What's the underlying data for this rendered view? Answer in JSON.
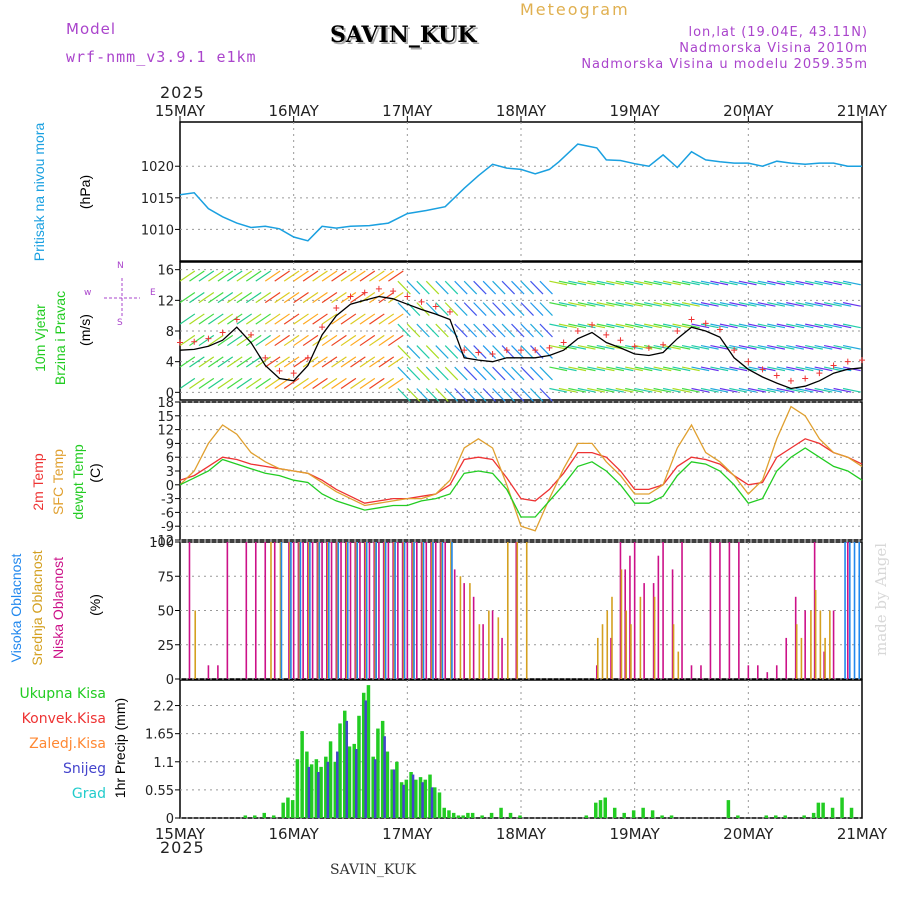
{
  "header": {
    "model_label": "Model",
    "model_name": "wrf-nmm_v3.9.1  e1km",
    "station": "SAVIN_KUK",
    "title": "Meteogram",
    "coords": "lon,lat (19.04E, 43.11N)",
    "elev": "Nadmorska Visina 2010m",
    "elev_model": "Nadmorska Visina u modelu 2059.35m",
    "footer": "SAVIN_KUK",
    "credit": "made by Angel"
  },
  "time_axis": {
    "year": "2025",
    "ticks": [
      "15MAY",
      "16MAY",
      "17MAY",
      "18MAY",
      "19MAY",
      "20MAY",
      "21MAY"
    ]
  },
  "panel_labels": {
    "pressure": [
      "Pritisak na nivou mora",
      "(hPa)"
    ],
    "wind": [
      "10m Vjetar",
      "Brzina i Pravac",
      "(m/s)"
    ],
    "temp": [
      "2m Temp",
      "SFC Temp",
      "dewpt Temp",
      "(C)"
    ],
    "cloud": [
      "Visoka Oblacnost",
      "Srednja Oblacnost",
      "Niska Oblacnost",
      "(%)"
    ],
    "precip": [
      "Ukupna Kisa",
      "Konvek.Kisa",
      "Zaledj.Kisa",
      "Snijeg",
      "Grad",
      "1hr Precip (mm)"
    ],
    "compass": {
      "w": "w",
      "n": "N",
      "s": "S",
      "e": "E"
    }
  },
  "colors": {
    "pressure": "#1aa0e0",
    "temp2m": "#ee3333",
    "sfc": "#e0a030",
    "dewpt": "#22cc22",
    "cloud_high": "#2288ee",
    "cloud_mid": "#d4a020",
    "cloud_low": "#cc1188",
    "precip_total": "#22cc22",
    "precip_conv": "#ee3333",
    "precip_frz": "#ff8833",
    "precip_snow": "#4444cc",
    "precip_hail": "#22cccc",
    "compass": "#aa44cc"
  },
  "chart_data": [
    {
      "type": "line",
      "name": "pressure",
      "ylabel": "(hPa)",
      "ylim": [
        1005,
        1027
      ],
      "yticks": [
        1010,
        1015,
        1020
      ],
      "x_hours": [
        0,
        3,
        6,
        9,
        12,
        15,
        18,
        21,
        24,
        27,
        30,
        33,
        36,
        40,
        44,
        48,
        52,
        56,
        60,
        63,
        66,
        69,
        72,
        75,
        78,
        80,
        84,
        88,
        90,
        93,
        96,
        99,
        102,
        105,
        108,
        111,
        114,
        117,
        120,
        123,
        126,
        129,
        132,
        135,
        138,
        141,
        144
      ],
      "values": [
        1015.5,
        1015.8,
        1013.3,
        1012.0,
        1011.0,
        1010.3,
        1010.5,
        1010.1,
        1008.8,
        1008.2,
        1010.5,
        1010.2,
        1010.5,
        1010.6,
        1011.0,
        1012.5,
        1013.0,
        1013.6,
        1016.5,
        1018.5,
        1020.3,
        1019.7,
        1019.5,
        1018.8,
        1019.5,
        1020.7,
        1023.5,
        1022.9,
        1021.0,
        1020.9,
        1020.4,
        1020.0,
        1021.8,
        1019.8,
        1022.3,
        1021.0,
        1020.7,
        1020.5,
        1020.5,
        1020.0,
        1020.8,
        1020.5,
        1020.3,
        1020.5,
        1020.5,
        1020.0,
        1020.0
      ]
    },
    {
      "type": "line",
      "name": "wind_speed",
      "ylabel": "(m/s)",
      "ylim": [
        -1,
        17
      ],
      "yticks": [
        0,
        4,
        8,
        12,
        16
      ],
      "x_hours": [
        0,
        3,
        6,
        9,
        12,
        15,
        18,
        21,
        24,
        27,
        30,
        33,
        36,
        39,
        42,
        45,
        48,
        51,
        54,
        57,
        60,
        63,
        66,
        69,
        72,
        75,
        78,
        81,
        84,
        87,
        90,
        93,
        96,
        99,
        102,
        105,
        108,
        111,
        114,
        117,
        120,
        123,
        126,
        129,
        132,
        135,
        138,
        141,
        144
      ],
      "values": [
        5.5,
        5.6,
        6.0,
        6.8,
        8.5,
        6.5,
        3.5,
        1.8,
        1.5,
        3.5,
        7.5,
        10.0,
        11.5,
        12.0,
        12.5,
        12.2,
        11.5,
        10.8,
        10.2,
        9.5,
        4.5,
        4.2,
        4.0,
        4.5,
        4.5,
        4.5,
        4.8,
        5.5,
        7.0,
        7.8,
        6.5,
        5.8,
        5.0,
        4.8,
        5.2,
        7.0,
        8.5,
        8.0,
        7.2,
        4.5,
        3.0,
        2.0,
        1.2,
        0.5,
        0.8,
        1.5,
        2.5,
        3.0,
        3.2
      ]
    },
    {
      "type": "line",
      "name": "temperature",
      "ylabel": "(C)",
      "ylim": [
        -12,
        18
      ],
      "yticks": [
        -12,
        -9,
        -6,
        -3,
        0,
        3,
        6,
        9,
        12,
        15,
        18
      ],
      "x_hours": [
        0,
        3,
        6,
        9,
        12,
        15,
        18,
        21,
        24,
        27,
        30,
        33,
        36,
        39,
        42,
        45,
        48,
        51,
        54,
        57,
        60,
        63,
        66,
        69,
        72,
        75,
        78,
        81,
        84,
        87,
        90,
        93,
        96,
        99,
        102,
        105,
        108,
        111,
        114,
        117,
        120,
        123,
        126,
        129,
        132,
        135,
        138,
        141,
        144
      ],
      "series": [
        {
          "key": "temp2m",
          "values": [
            1,
            2,
            4,
            6,
            5.5,
            4.5,
            4,
            3.5,
            3,
            2.5,
            1,
            -1,
            -2.5,
            -4,
            -3.5,
            -3,
            -3,
            -2.5,
            -2,
            0,
            5.5,
            6,
            5.5,
            1.5,
            -3,
            -3.5,
            -1,
            2.5,
            7,
            7,
            6,
            3,
            -1,
            -1,
            0,
            4,
            6,
            5.5,
            4.5,
            2,
            0,
            0.5,
            6,
            8,
            10,
            9,
            7,
            6,
            4.5
          ]
        },
        {
          "key": "sfc",
          "values": [
            0,
            3,
            9,
            13,
            11,
            7,
            5,
            3.5,
            3,
            2.5,
            0.5,
            -1.5,
            -3,
            -4.5,
            -4,
            -3.5,
            -3,
            -3,
            -2,
            1,
            8,
            10,
            8,
            0,
            -9,
            -10,
            -3,
            3.5,
            9,
            9,
            5,
            2,
            -2,
            -2,
            0,
            8,
            13,
            7,
            5,
            2,
            -2,
            1,
            10,
            17,
            15,
            10,
            7,
            6,
            4
          ]
        },
        {
          "key": "dewpt",
          "values": [
            0,
            1.5,
            3,
            5.5,
            4.5,
            3.5,
            2.5,
            2,
            1,
            0.5,
            -2,
            -3.5,
            -4.5,
            -5.5,
            -5,
            -4.5,
            -4.5,
            -3.5,
            -3,
            -2,
            2.5,
            3,
            2.5,
            -1,
            -7,
            -7,
            -3.5,
            0,
            4,
            5,
            3,
            0,
            -4,
            -4,
            -2.5,
            2,
            5,
            4.5,
            3,
            0,
            -4,
            -3,
            3,
            6,
            8,
            6,
            4,
            3,
            1
          ]
        }
      ]
    },
    {
      "type": "bar",
      "name": "cloud_cover",
      "ylabel": "(%)",
      "ylim": [
        0,
        100
      ],
      "yticks": [
        0,
        25,
        50,
        75,
        100
      ],
      "series": [
        {
          "key": "cloud_low",
          "x_hours": [
            2,
            6,
            8,
            10,
            14,
            16,
            18,
            20,
            23,
            24,
            25,
            26,
            27,
            28,
            29,
            30,
            31,
            32,
            33,
            34,
            35,
            36,
            37,
            38,
            39,
            40,
            41,
            42,
            43,
            44,
            45,
            46,
            47,
            48,
            49,
            50,
            51,
            52,
            53,
            54,
            55,
            56,
            58,
            60,
            62,
            64,
            66,
            68,
            71,
            88,
            91,
            93,
            94,
            95,
            96,
            98,
            100,
            101,
            102,
            104,
            106,
            108,
            110,
            112,
            114,
            116,
            118,
            120,
            122,
            124,
            126,
            128,
            130,
            132,
            134,
            136,
            138,
            141
          ],
          "values": [
            100,
            10,
            10,
            100,
            100,
            100,
            100,
            100,
            100,
            100,
            100,
            100,
            100,
            100,
            100,
            100,
            100,
            100,
            100,
            100,
            100,
            100,
            100,
            100,
            100,
            100,
            100,
            100,
            100,
            100,
            100,
            100,
            100,
            100,
            100,
            100,
            100,
            100,
            100,
            100,
            100,
            100,
            80,
            70,
            60,
            40,
            50,
            30,
            100,
            10,
            30,
            100,
            80,
            90,
            100,
            70,
            70,
            90,
            100,
            80,
            100,
            10,
            10,
            100,
            100,
            100,
            100,
            10,
            10,
            5,
            10,
            30,
            60,
            50,
            100,
            20,
            50,
            100
          ]
        },
        {
          "key": "cloud_mid",
          "x_hours": [
            3,
            19,
            21,
            23,
            25,
            27,
            29,
            31,
            33,
            35,
            37,
            39,
            41,
            43,
            45,
            47,
            49,
            51,
            53,
            55,
            57,
            59,
            61,
            63,
            65,
            67,
            69,
            71,
            73,
            88,
            89,
            90,
            91,
            93,
            94,
            95,
            97,
            100,
            104,
            105,
            130,
            131,
            133,
            134,
            135,
            136,
            137
          ],
          "values": [
            50,
            100,
            100,
            100,
            100,
            100,
            100,
            100,
            100,
            100,
            100,
            100,
            100,
            100,
            100,
            100,
            100,
            100,
            100,
            100,
            100,
            75,
            70,
            40,
            50,
            45,
            100,
            100,
            100,
            30,
            40,
            50,
            60,
            80,
            50,
            40,
            60,
            60,
            40,
            20,
            40,
            30,
            50,
            65,
            50,
            30,
            50
          ]
        },
        {
          "key": "cloud_high",
          "x_hours": [
            21,
            23,
            25,
            27,
            29,
            31,
            33,
            35,
            37,
            39,
            41,
            43,
            45,
            47,
            49,
            51,
            53,
            55,
            57,
            140,
            141,
            142,
            143,
            144
          ],
          "values": [
            100,
            100,
            100,
            100,
            100,
            100,
            100,
            100,
            100,
            100,
            100,
            100,
            100,
            100,
            100,
            100,
            100,
            100,
            100,
            100,
            100,
            100,
            100,
            100
          ]
        }
      ]
    },
    {
      "type": "bar",
      "name": "precipitation",
      "ylabel": "1hr Precip (mm)",
      "ylim": [
        0,
        2.7
      ],
      "yticks": [
        0,
        0.55,
        1.1,
        1.65,
        2.2
      ],
      "series": [
        {
          "key": "precip_total",
          "x_hours": [
            14,
            16,
            18,
            20,
            22,
            23,
            24,
            25,
            26,
            27,
            28,
            29,
            30,
            31,
            32,
            33,
            34,
            35,
            36,
            37,
            38,
            39,
            40,
            41,
            42,
            43,
            44,
            45,
            46,
            47,
            48,
            49,
            50,
            51,
            52,
            53,
            54,
            55,
            56,
            57,
            58,
            59,
            60,
            61,
            62,
            64,
            66,
            68,
            70,
            72,
            86,
            88,
            89,
            90,
            92,
            94,
            96,
            98,
            100,
            102,
            104,
            116,
            118,
            124,
            126,
            128,
            132,
            134,
            135,
            136,
            138,
            140,
            142
          ],
          "values": [
            0.05,
            0.05,
            0.1,
            0.05,
            0.3,
            0.4,
            0.35,
            1.15,
            1.7,
            1.3,
            1.05,
            1.15,
            1.0,
            1.2,
            1.5,
            1.1,
            1.85,
            2.1,
            1.4,
            1.45,
            2.0,
            2.45,
            2.6,
            1.2,
            1.75,
            1.9,
            1.3,
            0.95,
            1.1,
            0.7,
            0.75,
            0.9,
            0.75,
            0.8,
            0.75,
            0.85,
            0.6,
            0.5,
            0.2,
            0.15,
            0.1,
            0.05,
            0.05,
            0.1,
            0.1,
            0.05,
            0.1,
            0.2,
            0.1,
            0.05,
            0.05,
            0.3,
            0.35,
            0.4,
            0.2,
            0.1,
            0.15,
            0.2,
            0.15,
            0.05,
            0.05,
            0.35,
            0.05,
            0.05,
            0.05,
            0.05,
            0.05,
            0.1,
            0.3,
            0.3,
            0.2,
            0.4,
            0.2
          ]
        },
        {
          "key": "precip_snow",
          "x_hours": [
            27,
            29,
            31,
            33,
            35,
            37,
            39,
            41,
            43,
            45,
            47,
            49,
            51,
            53
          ],
          "values": [
            1.0,
            0.9,
            1.1,
            1.3,
            1.9,
            1.35,
            2.3,
            1.15,
            1.6,
            0.95,
            0.65,
            0.85,
            0.7,
            0.6
          ]
        }
      ]
    }
  ]
}
